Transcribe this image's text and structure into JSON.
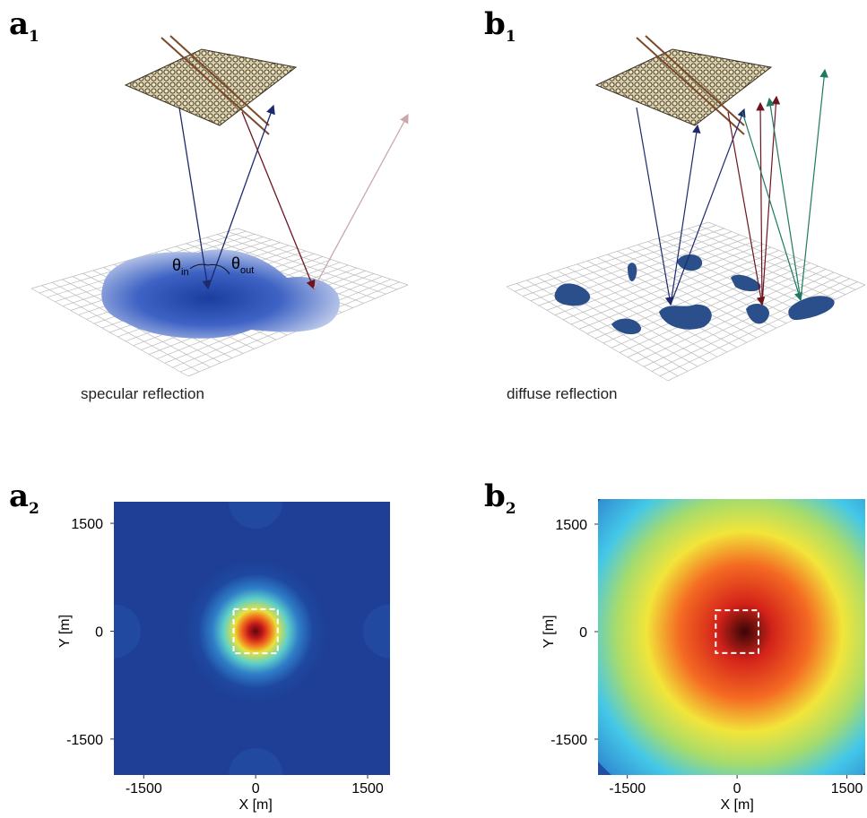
{
  "panels": [
    {
      "label": "a",
      "sub": "1",
      "caption": "specular reflection",
      "theta": "θ",
      "theta_in": "in",
      "theta_out": "out"
    },
    {
      "label": "b",
      "sub": "1",
      "caption": "diffuse reflection"
    }
  ],
  "plots": [
    {
      "label": "a",
      "sub": "2",
      "xlabel": "X [m]",
      "ylabel": "Y [m]",
      "xlim": [
        -1900,
        1800
      ],
      "ylim": [
        -2000,
        1800
      ],
      "xticks": [
        -1500,
        0,
        1500
      ],
      "yticks": [
        -1500,
        0,
        1500
      ]
    },
    {
      "label": "b",
      "sub": "2",
      "xlabel": "X [m]",
      "ylabel": "Y [m]",
      "xlim": [
        -1900,
        1750
      ],
      "ylim": [
        -2000,
        1850
      ],
      "xticks": [
        -1500,
        0,
        1500
      ],
      "yticks": [
        -1500,
        0,
        1500
      ]
    }
  ]
}
